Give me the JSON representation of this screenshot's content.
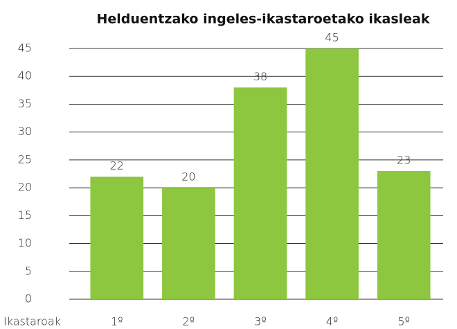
{
  "chart_data": {
    "type": "bar",
    "title": "Helduentzako ingeles-ikastaroetako ikasleak",
    "x_label": "Ikastaroak",
    "categories": [
      "1º",
      "2º",
      "3º",
      "4º",
      "5º"
    ],
    "values": [
      22,
      20,
      38,
      45,
      23
    ],
    "color": "#8dc63f",
    "ylim": [
      0,
      45
    ],
    "yticks": [
      0,
      5,
      10,
      15,
      20,
      25,
      30,
      35,
      40,
      45
    ],
    "grid": true
  }
}
